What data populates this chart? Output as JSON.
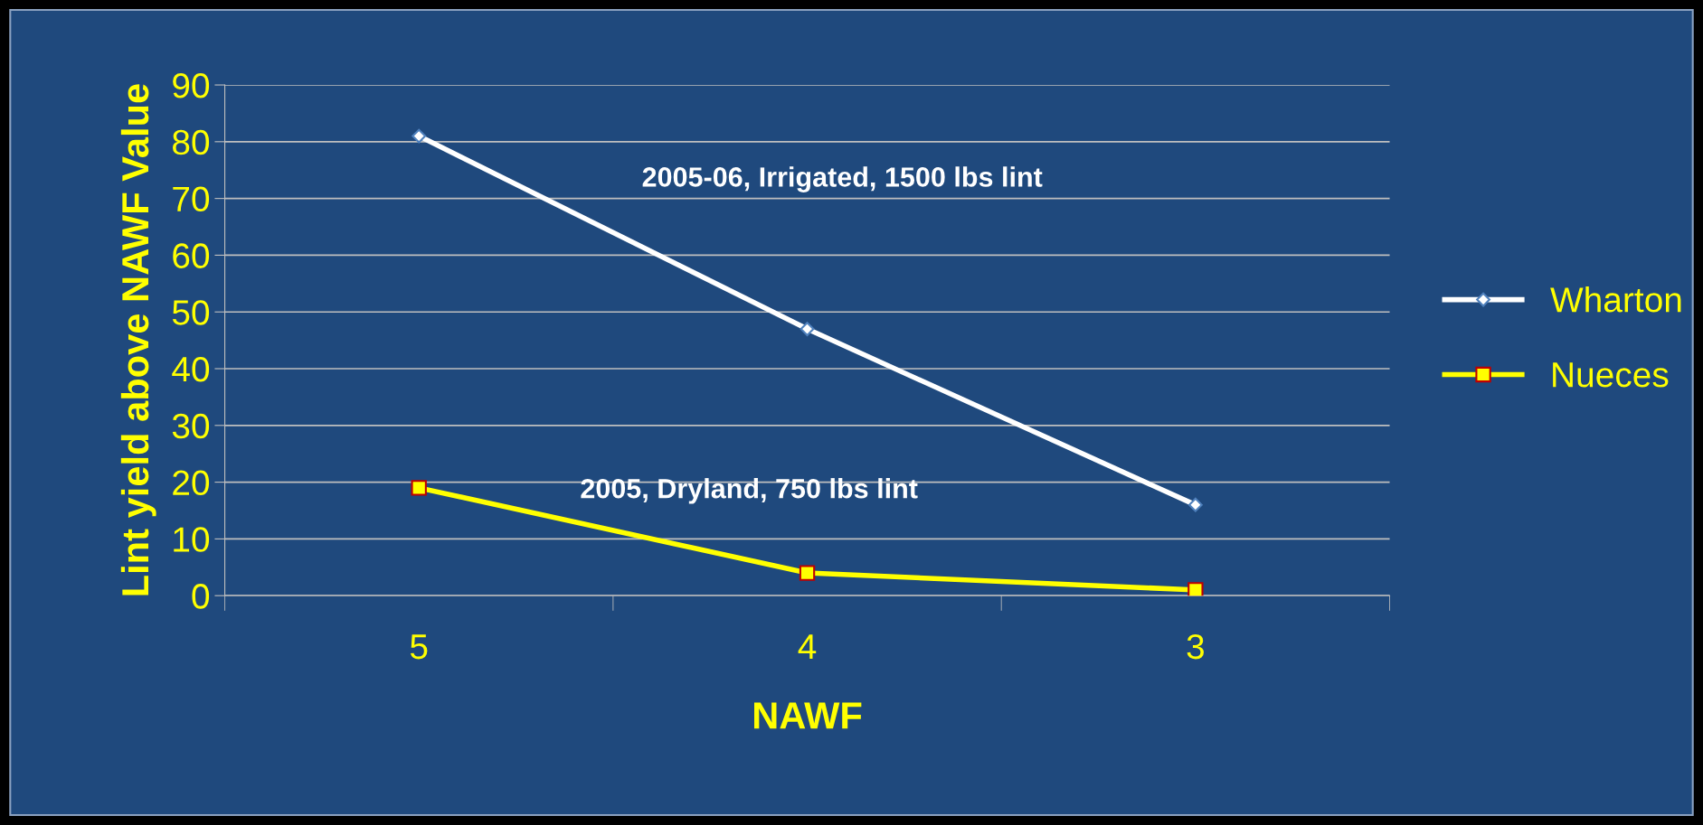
{
  "chart_data": {
    "type": "line",
    "xlabel": "NAWF",
    "ylabel": "Lint yield above NAWF Value",
    "categories": [
      "5",
      "4",
      "3"
    ],
    "series": [
      {
        "name": "Wharton",
        "color": "#ffffff",
        "marker": "diamond",
        "values": [
          81,
          47,
          16
        ]
      },
      {
        "name": "Nueces",
        "color": "#ffff00",
        "marker": "square",
        "values": [
          19,
          4,
          1
        ]
      }
    ],
    "annotations": [
      "2005-06, Irrigated, 1500 lbs lint",
      "2005, Dryland, 750 lbs lint"
    ],
    "ylim": [
      0,
      90
    ],
    "yticks": [
      0,
      10,
      20,
      30,
      40,
      50,
      60,
      70,
      80,
      90
    ],
    "grid": "y",
    "legend": "right"
  }
}
